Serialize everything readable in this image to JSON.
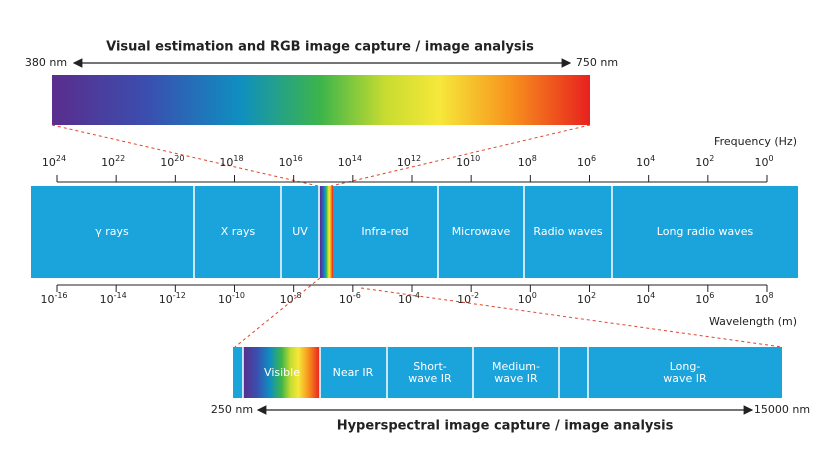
{
  "top": {
    "title": "Visual estimation and RGB image capture / image analysis",
    "left": "380 nm",
    "right": "750 nm"
  },
  "frequency": {
    "label": "Frequency (Hz)",
    "base": "10",
    "exponents": [
      "24",
      "22",
      "20",
      "18",
      "16",
      "14",
      "12",
      "10",
      "8",
      "6",
      "4",
      "2",
      "0"
    ]
  },
  "bands": [
    "γ rays",
    "X rays",
    "UV",
    "Infra-red",
    "Microwave",
    "Radio waves",
    "Long radio waves"
  ],
  "wavelength": {
    "label": "Wavelength (m)",
    "base": "10",
    "exponents": [
      "-16",
      "-14",
      "-12",
      "-10",
      "-8",
      "-6",
      "-4",
      "-2",
      "0",
      "2",
      "4",
      "6",
      "8"
    ]
  },
  "bottom": {
    "segments": [
      "Visible",
      "Near IR",
      "Short-wave IR",
      "Medium-wave IR",
      "Long-wave IR"
    ],
    "left": "250 nm",
    "right": "15000 nm",
    "title": "Hyperspectral image capture / image analysis"
  }
}
